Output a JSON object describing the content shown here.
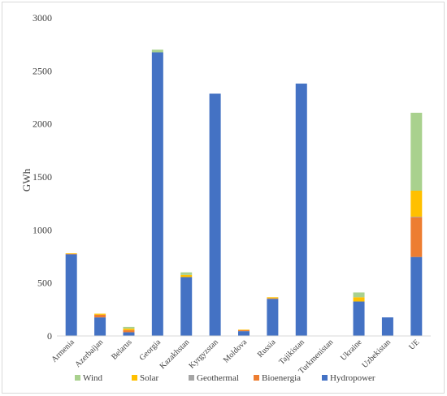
{
  "chart_data": {
    "type": "bar",
    "stacked": true,
    "ylabel": "GWh",
    "xlabel": "",
    "ylim": [
      0,
      3000
    ],
    "yticks": [
      0,
      500,
      1000,
      1500,
      2000,
      2500,
      3000
    ],
    "grid": false,
    "legend_position": "bottom",
    "categories": [
      "Armenia",
      "Azerbaijan",
      "Belarus",
      "Georgia",
      "Kazakhstan",
      "Kyrgyzstan",
      "Moldova",
      "Russia",
      "Tajikistan",
      "Turkmenistan",
      "Ukraine",
      "Uzbekistan",
      "UE"
    ],
    "series": [
      {
        "name": "Hydropower",
        "color": "#4472c4",
        "values": [
          770,
          175,
          35,
          2675,
          555,
          2285,
          45,
          350,
          2380,
          0,
          325,
          175,
          745
        ]
      },
      {
        "name": "Bioenergia",
        "color": "#ed7d31",
        "values": [
          5,
          25,
          20,
          0,
          0,
          0,
          10,
          5,
          0,
          0,
          0,
          0,
          375
        ]
      },
      {
        "name": "Geothermal",
        "color": "#a5a5a5",
        "values": [
          0,
          0,
          0,
          0,
          0,
          0,
          0,
          0,
          0,
          0,
          0,
          0,
          5
        ]
      },
      {
        "name": "Solar",
        "color": "#ffc000",
        "values": [
          5,
          10,
          15,
          0,
          20,
          0,
          5,
          10,
          0,
          0,
          40,
          0,
          245
        ]
      },
      {
        "name": "Wind",
        "color": "#a9d18e",
        "values": [
          0,
          0,
          15,
          25,
          25,
          0,
          0,
          0,
          0,
          0,
          45,
          0,
          735
        ]
      }
    ],
    "legend_order": [
      "Wind",
      "Solar",
      "Geothermal",
      "Bioenergia",
      "Hydropower"
    ]
  }
}
